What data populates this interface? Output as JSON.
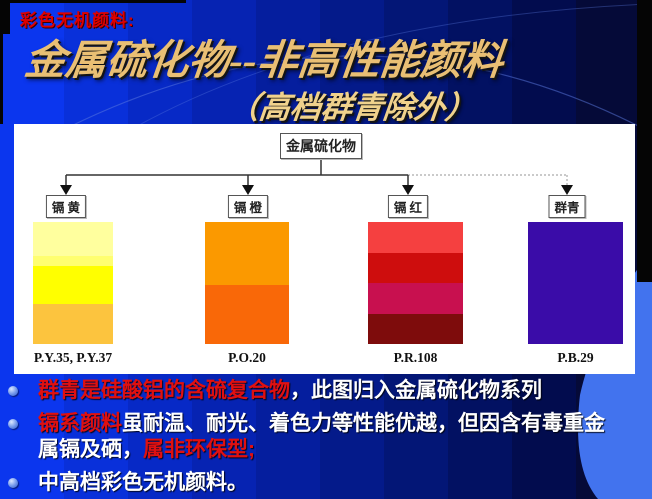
{
  "header": {
    "kicker": "彩色无机颜料:",
    "title": "金属硫化物--非高性能颜料",
    "subtitle": "（高档群青除外）"
  },
  "diagram": {
    "root_label": "金属硫化物",
    "branches": [
      {
        "label": "镉 黄",
        "pigment_code": "P.Y.35, P.Y.37",
        "connector_style": "solid",
        "bands": [
          {
            "color": "#ffff9e",
            "pct": 28
          },
          {
            "color": "#ffff70",
            "pct": 8
          },
          {
            "color": "#ffff00",
            "pct": 31
          },
          {
            "color": "#fcc43e",
            "pct": 33
          }
        ]
      },
      {
        "label": "镉 橙",
        "pigment_code": "P.O.20",
        "connector_style": "solid",
        "bands": [
          {
            "color": "#fb9900",
            "pct": 52
          },
          {
            "color": "#f96808",
            "pct": 48
          }
        ]
      },
      {
        "label": "镉 红",
        "pigment_code": "P.R.108",
        "connector_style": "solid",
        "bands": [
          {
            "color": "#f54040",
            "pct": 25
          },
          {
            "color": "#ce0d0d",
            "pct": 25
          },
          {
            "color": "#c8104f",
            "pct": 25
          },
          {
            "color": "#7e0c0c",
            "pct": 25
          }
        ]
      },
      {
        "label": "群青",
        "pigment_code": "P.B.29",
        "connector_style": "dashed",
        "bands": [
          {
            "color": "#3a0ca8",
            "pct": 100
          }
        ]
      }
    ]
  },
  "bullets": [
    {
      "segments": [
        {
          "text": "群青是硅酸铝的含硫复合物",
          "emphasis": "red"
        },
        {
          "text": "，此图归入金属硫化物系列",
          "emphasis": "white"
        }
      ]
    },
    {
      "segments": [
        {
          "text": "镉系颜料",
          "emphasis": "red"
        },
        {
          "text": "虽耐温、耐光、着色力等性能优越，但因含有毒重金属镉及硒，",
          "emphasis": "white"
        },
        {
          "text": "属非环保型;",
          "emphasis": "red"
        }
      ]
    },
    {
      "segments": [
        {
          "text": "中高档彩色无机颜料。",
          "emphasis": "white"
        }
      ]
    }
  ],
  "palette": {
    "emphasis_red": "#e01010",
    "body_white": "#ffffff",
    "title_gold": "#e9bf74",
    "corner_bright_blue": "#4273ee"
  }
}
